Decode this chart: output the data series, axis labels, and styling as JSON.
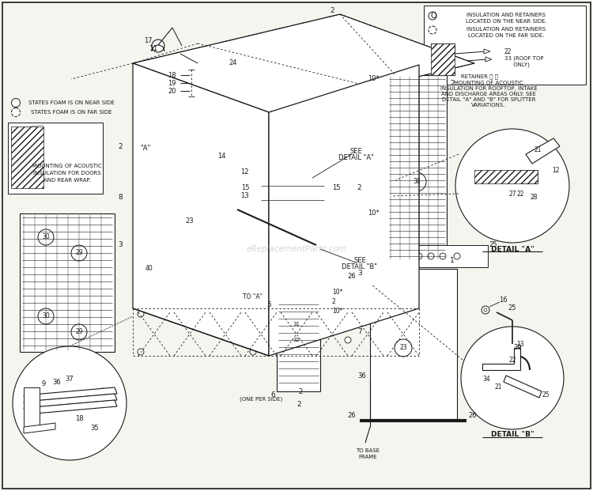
{
  "bg_color": "#f5f5f0",
  "line_color": "#1a1a1a",
  "text_color": "#1a1a1a",
  "watermark": "eReplacementParts.com",
  "parts": {
    "roof_label": "24",
    "left_unit_30a": "30",
    "left_unit_29a": "29",
    "left_unit_30b": "30",
    "left_unit_29b": "29"
  }
}
